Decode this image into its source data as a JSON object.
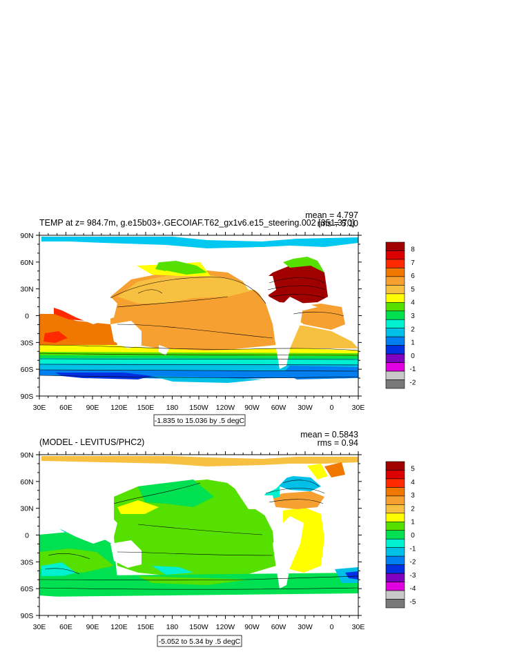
{
  "chart_data": [
    {
      "type": "heatmap",
      "title": "TEMP at z= 984.7m, g.e15b03+.GECOIAF.T62_gx1v6.e15_steering.002 [351,370]",
      "stats": {
        "mean": "mean = 4.797",
        "rms": "rms = 5.10"
      },
      "subtitle": "-1.835 to 15.036 by .5 degC",
      "x_ticks": [
        "30E",
        "60E",
        "90E",
        "120E",
        "150E",
        "180",
        "150W",
        "120W",
        "90W",
        "60W",
        "30W",
        "0",
        "30E"
      ],
      "y_ticks": [
        "90N",
        "60N",
        "30N",
        "0",
        "30S",
        "60S",
        "90S"
      ],
      "xlim": [
        30,
        390
      ],
      "ylim": [
        -90,
        90
      ],
      "colorbar": {
        "labels": [
          "8",
          "7",
          "6",
          "5",
          "4",
          "3",
          "2",
          "1",
          "0",
          "-1",
          "-2"
        ],
        "colors": [
          "#a00000",
          "#dc0000",
          "#ff2a00",
          "#f07800",
          "#f5a030",
          "#f8c040",
          "#ffff00",
          "#55e000",
          "#00e050",
          "#00f0d0",
          "#00c0e8",
          "#0080f0",
          "#0030e0",
          "#8000c0",
          "#e000e0",
          "#c8c8c8",
          "#787878"
        ]
      }
    },
    {
      "type": "heatmap",
      "title": "(MODEL - LEVITUS/PHC2)",
      "stats": {
        "mean": "mean = 0.5843",
        "rms": "rms = 0.94"
      },
      "subtitle": "-5.052 to 5.34 by .5 degC",
      "x_ticks": [
        "30E",
        "60E",
        "90E",
        "120E",
        "150E",
        "180",
        "150W",
        "120W",
        "90W",
        "60W",
        "30W",
        "0",
        "30E"
      ],
      "y_ticks": [
        "90N",
        "60N",
        "30N",
        "0",
        "30S",
        "60S",
        "90S"
      ],
      "xlim": [
        30,
        390
      ],
      "ylim": [
        -90,
        90
      ],
      "colorbar": {
        "labels": [
          "5",
          "4",
          "3",
          "2",
          "1",
          "0",
          "-1",
          "-2",
          "-3",
          "-4",
          "-5"
        ],
        "colors": [
          "#a00000",
          "#dc0000",
          "#ff2a00",
          "#f07800",
          "#f5a030",
          "#f8c040",
          "#ffff00",
          "#55e000",
          "#00e050",
          "#00f0d0",
          "#00c0e8",
          "#0080f0",
          "#0030e0",
          "#8000c0",
          "#e000e0",
          "#c8c8c8",
          "#787878"
        ]
      }
    }
  ]
}
